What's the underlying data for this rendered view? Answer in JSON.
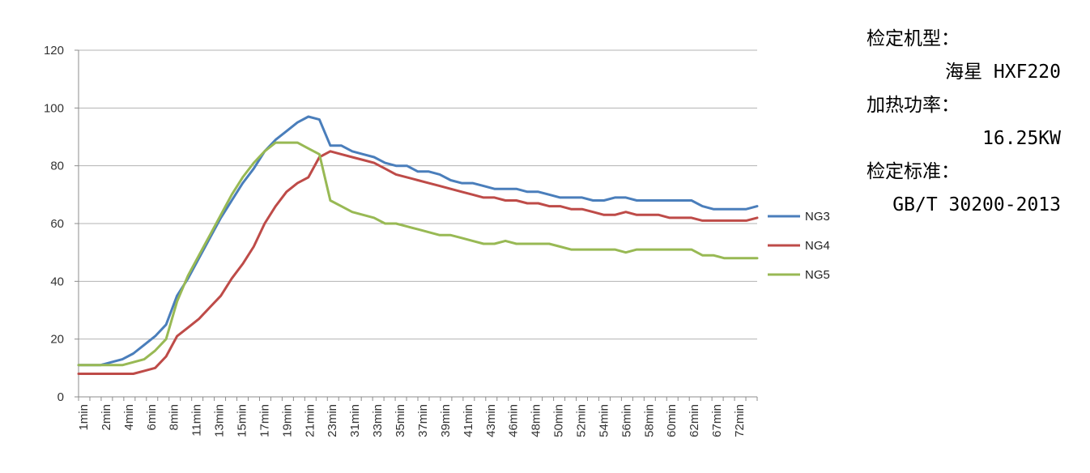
{
  "chart_data": {
    "type": "line",
    "title": "",
    "xlabel": "",
    "ylabel": "",
    "ylim": [
      0,
      120
    ],
    "yticks": [
      0,
      20,
      40,
      60,
      80,
      100,
      120
    ],
    "grid": true,
    "legend_position": "right",
    "x_tick_labels": [
      "1min",
      "2min",
      "4min",
      "6min",
      "8min",
      "11min",
      "13min",
      "15min",
      "17min",
      "19min",
      "21min",
      "23min",
      "31min",
      "33min",
      "35min",
      "37min",
      "39min",
      "41min",
      "43min",
      "46min",
      "48min",
      "50min",
      "52min",
      "54min",
      "56min",
      "58min",
      "60min",
      "62min",
      "67min",
      "72min"
    ],
    "x_point_count": 63,
    "series": [
      {
        "name": "NG3",
        "color": "#4a7ebb",
        "values": [
          11,
          11,
          11,
          12,
          13,
          15,
          18,
          21,
          25,
          35,
          41,
          48,
          55,
          62,
          68,
          74,
          79,
          85,
          89,
          92,
          95,
          97,
          96,
          87,
          87,
          85,
          84,
          83,
          81,
          80,
          80,
          78,
          78,
          77,
          75,
          74,
          74,
          73,
          72,
          72,
          72,
          71,
          71,
          70,
          69,
          69,
          69,
          68,
          68,
          69,
          69,
          68,
          68,
          68,
          68,
          68,
          68,
          66,
          65,
          65,
          65,
          65,
          66
        ]
      },
      {
        "name": "NG4",
        "color": "#be4b48",
        "values": [
          8,
          8,
          8,
          8,
          8,
          8,
          9,
          10,
          14,
          21,
          24,
          27,
          31,
          35,
          41,
          46,
          52,
          60,
          66,
          71,
          74,
          76,
          83,
          85,
          84,
          83,
          82,
          81,
          79,
          77,
          76,
          75,
          74,
          73,
          72,
          71,
          70,
          69,
          69,
          68,
          68,
          67,
          67,
          66,
          66,
          65,
          65,
          64,
          63,
          63,
          64,
          63,
          63,
          63,
          62,
          62,
          62,
          61,
          61,
          61,
          61,
          61,
          62
        ]
      },
      {
        "name": "NG5",
        "color": "#98b954",
        "values": [
          11,
          11,
          11,
          11,
          11,
          12,
          13,
          16,
          20,
          33,
          42,
          49,
          56,
          63,
          70,
          76,
          81,
          85,
          88,
          88,
          88,
          86,
          84,
          68,
          66,
          64,
          63,
          62,
          60,
          60,
          59,
          58,
          57,
          56,
          56,
          55,
          54,
          53,
          53,
          54,
          53,
          53,
          53,
          53,
          52,
          51,
          51,
          51,
          51,
          51,
          50,
          51,
          51,
          51,
          51,
          51,
          51,
          49,
          49,
          48,
          48,
          48,
          48
        ]
      }
    ]
  },
  "info": {
    "label1": "检定机型：",
    "value1": "海星 HXF220",
    "label2": "加热功率：",
    "value2": "16.25KW",
    "label3": "检定标准：",
    "value3": "GB/T 30200-2013"
  }
}
